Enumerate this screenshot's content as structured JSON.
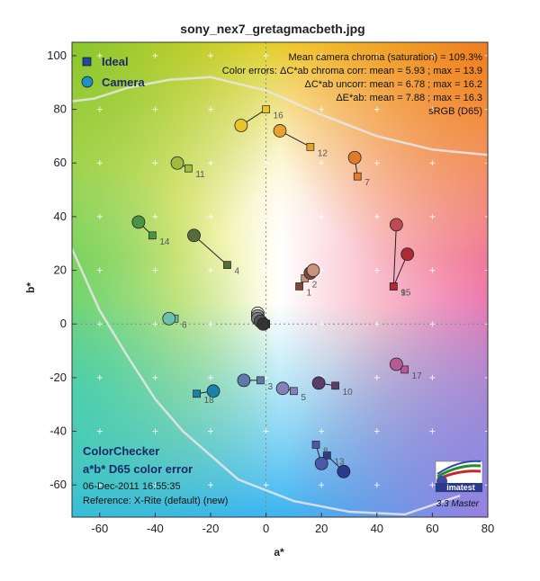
{
  "chart_data": {
    "type": "scatter",
    "title": "sony_nex7_gretagmacbeth.jpg",
    "xlabel": "a*",
    "ylabel": "b*",
    "xlim": [
      -70,
      80
    ],
    "ylim": [
      -72,
      105
    ],
    "x_ticks": [
      "-60",
      "-40",
      "-20",
      "0",
      "20",
      "40",
      "60",
      "80"
    ],
    "y_ticks": [
      "100",
      "80",
      "60",
      "40",
      "20",
      "0",
      "-20",
      "-40",
      "-60"
    ],
    "grid": true,
    "legend_position": "top-left",
    "legend": {
      "ideal": "Ideal",
      "camera": "Camera"
    },
    "annotations": {
      "line1": "Mean camera chroma (saturation) = 109.3%",
      "line2": "Color errors: ΔC*ab chroma corr:  mean = 5.93 ;  max = 13.9",
      "line3": "ΔC*ab uncorr:  mean = 6.78 ;  max = 16.2",
      "line4": "ΔE*ab:  mean = 7.88 ;  max = 16.3",
      "line5": "sRGB (D65)"
    },
    "info": {
      "title1": "ColorChecker",
      "title2": "a*b* D65 color error",
      "date": "06-Dec-2011 16:55:35",
      "reference": "Reference: X-Rite (default) (new)"
    },
    "brand": {
      "name": "imatest",
      "version": "3.3  Master"
    },
    "patches": [
      {
        "id": "1",
        "ideal": [
          12,
          14
        ],
        "camera": [
          16,
          19
        ],
        "color": "#7a4a3a"
      },
      {
        "id": "2",
        "ideal": [
          14,
          17
        ],
        "camera": [
          17,
          20
        ],
        "color": "#c8927e"
      },
      {
        "id": "3",
        "ideal": [
          -2,
          -21
        ],
        "camera": [
          -8,
          -21
        ],
        "color": "#5e7aa8"
      },
      {
        "id": "4",
        "ideal": [
          -14,
          22
        ],
        "camera": [
          -26,
          33
        ],
        "color": "#566c3a"
      },
      {
        "id": "5",
        "ideal": [
          10,
          -25
        ],
        "camera": [
          6,
          -24
        ],
        "color": "#8282b8"
      },
      {
        "id": "6",
        "ideal": [
          -33,
          2
        ],
        "camera": [
          -35,
          2
        ],
        "color": "#6ec0ae"
      },
      {
        "id": "7",
        "ideal": [
          33,
          55
        ],
        "camera": [
          32,
          62
        ],
        "color": "#e07c2a"
      },
      {
        "id": "8",
        "ideal": [
          18,
          -45
        ],
        "camera": [
          20,
          -52
        ],
        "color": "#4a5aa8"
      },
      {
        "id": "9",
        "ideal": [
          46,
          14
        ],
        "camera": [
          47,
          37
        ],
        "color": "#c04a54"
      },
      {
        "id": "10",
        "ideal": [
          25,
          -23
        ],
        "camera": [
          19,
          -22
        ],
        "color": "#5c3c6a"
      },
      {
        "id": "11",
        "ideal": [
          -28,
          58
        ],
        "camera": [
          -32,
          60
        ],
        "color": "#a0bc3e"
      },
      {
        "id": "12",
        "ideal": [
          16,
          66
        ],
        "camera": [
          5,
          72
        ],
        "color": "#e8a22a"
      },
      {
        "id": "13",
        "ideal": [
          22,
          -49
        ],
        "camera": [
          28,
          -55
        ],
        "color": "#2a3a8c"
      },
      {
        "id": "14",
        "ideal": [
          -41,
          33
        ],
        "camera": [
          -46,
          38
        ],
        "color": "#4a9448"
      },
      {
        "id": "15",
        "ideal": [
          46,
          14
        ],
        "camera": [
          51,
          26
        ],
        "color": "#b02a34"
      },
      {
        "id": "16",
        "ideal": [
          0,
          80
        ],
        "camera": [
          -9,
          74
        ],
        "color": "#e8c62a"
      },
      {
        "id": "17",
        "ideal": [
          50,
          -17
        ],
        "camera": [
          47,
          -15
        ],
        "color": "#b85a98"
      },
      {
        "id": "18",
        "ideal": [
          -25,
          -26
        ],
        "camera": [
          -19,
          -25
        ],
        "color": "#1a82a8"
      },
      {
        "id": "19",
        "ideal": [
          0,
          0
        ],
        "camera": [
          -3,
          4
        ],
        "color": "#f2f2f2"
      },
      {
        "id": "20",
        "ideal": [
          0,
          0
        ],
        "camera": [
          -3,
          3
        ],
        "color": "#c8c8c8"
      },
      {
        "id": "21",
        "ideal": [
          0,
          0
        ],
        "camera": [
          -3,
          3
        ],
        "color": "#a0a0a0"
      },
      {
        "id": "22",
        "ideal": [
          0,
          0
        ],
        "camera": [
          -3,
          2
        ],
        "color": "#7a7a7a"
      },
      {
        "id": "23",
        "ideal": [
          0,
          0
        ],
        "camera": [
          -2,
          1
        ],
        "color": "#555555"
      },
      {
        "id": "24",
        "ideal": [
          0,
          0
        ],
        "camera": [
          -1,
          0
        ],
        "color": "#333333"
      }
    ],
    "visible_labels": [
      "1",
      "2",
      "3",
      "4",
      "5",
      "6",
      "7",
      "8",
      "9",
      "10",
      "11",
      "12",
      "13",
      "14",
      "15",
      "16",
      "17",
      "18"
    ],
    "gamut_curve": [
      [
        -70,
        83
      ],
      [
        -62,
        84
      ],
      [
        -50,
        88
      ],
      [
        -35,
        91
      ],
      [
        -20,
        92
      ],
      [
        0,
        87
      ],
      [
        20,
        78
      ],
      [
        40,
        70
      ],
      [
        60,
        65
      ],
      [
        80,
        63
      ]
    ],
    "gamut_curve_lower": [
      [
        -70,
        28
      ],
      [
        -60,
        5
      ],
      [
        -50,
        -12
      ],
      [
        -40,
        -28
      ],
      [
        -30,
        -40
      ],
      [
        -10,
        -58
      ],
      [
        10,
        -66
      ],
      [
        30,
        -70
      ],
      [
        50,
        -71
      ],
      [
        70,
        -64
      ]
    ]
  }
}
